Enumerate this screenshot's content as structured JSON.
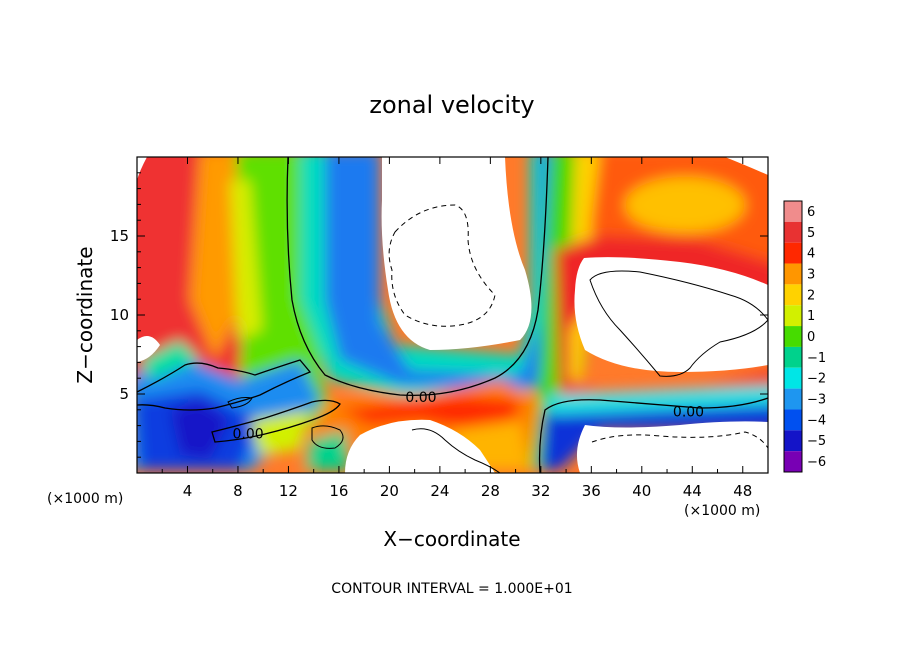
{
  "chart_data": {
    "type": "heatmap",
    "title": "zonal velocity",
    "xlabel": "X−coordinate",
    "ylabel": "Z−coordinate",
    "x_unit": "(×1000 m)",
    "y_unit": "(×1000 m)",
    "xlim": [
      0,
      50
    ],
    "ylim": [
      0,
      20
    ],
    "x_ticks": [
      4,
      8,
      12,
      16,
      20,
      24,
      28,
      32,
      36,
      40,
      44,
      48
    ],
    "x_tick_labels": [
      "4",
      "8",
      "12",
      "16",
      "20",
      "24",
      "28",
      "32",
      "36",
      "40",
      "44",
      "48"
    ],
    "y_ticks": [
      5,
      10,
      15
    ],
    "y_tick_labels": [
      "5",
      "10",
      "15"
    ],
    "colorbar": {
      "levels": [
        6,
        5,
        4,
        3,
        2,
        1,
        0,
        -1,
        -2,
        -3,
        -4,
        -5,
        -6
      ],
      "labels": [
        "6",
        "5",
        "4",
        "3",
        "2",
        "1",
        "0",
        "−1",
        "−2",
        "−3",
        "−4",
        "−5",
        "−6"
      ],
      "colors": [
        "#f08c8c",
        "#e83232",
        "#ff2800",
        "#ff9600",
        "#ffd200",
        "#d2f000",
        "#46dc00",
        "#00d28c",
        "#00e6e6",
        "#1e96f0",
        "#0050f0",
        "#1414c8",
        "#7800b4"
      ]
    },
    "contour_labels": [
      {
        "text": "0.00",
        "x": 22.5,
        "y": 4.8
      },
      {
        "text": "0.00",
        "x": 8.8,
        "y": 2.5
      },
      {
        "text": "0.00",
        "x": 43.7,
        "y": 3.9
      }
    ],
    "footer": "CONTOUR INTERVAL = 1.000E+01",
    "grid": false,
    "legend": "colorbar right"
  }
}
